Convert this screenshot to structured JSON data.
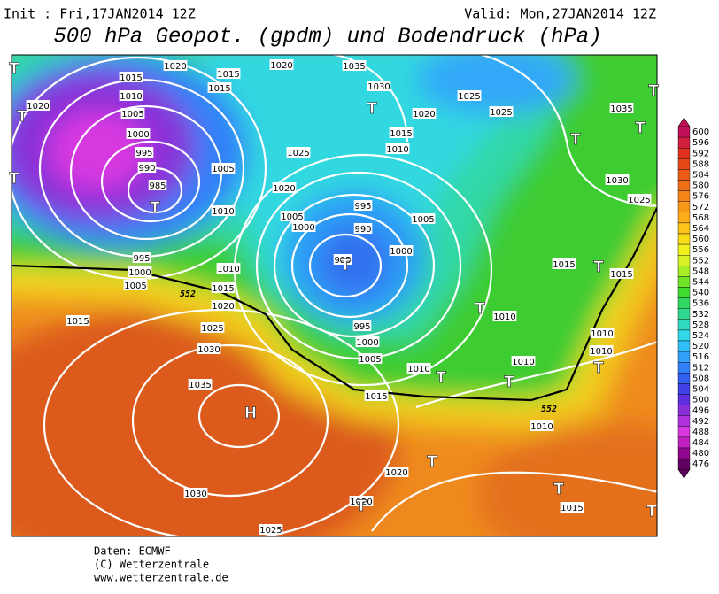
{
  "header": {
    "init": "Init : Fri,17JAN2014 12Z",
    "valid": "Valid: Mon,27JAN2014 12Z",
    "title": "500 hPa Geopot. (gpdm) und Bodendruck (hPa)"
  },
  "map": {
    "isobar_labels": [
      "1020",
      "1015",
      "1010",
      "1005",
      "1000",
      "995",
      "990",
      "985",
      "1020",
      "1015",
      "1015",
      "1020",
      "1035",
      "1030",
      "1025",
      "1025",
      "1020",
      "1015",
      "1010",
      "1025",
      "1020",
      "1005",
      "1000",
      "995",
      "990",
      "985",
      "1000",
      "1005",
      "1010",
      "1005",
      "995",
      "1000",
      "1005",
      "1010",
      "1015",
      "1020",
      "1025",
      "1030",
      "1015",
      "1035",
      "1030",
      "1025",
      "995",
      "1000",
      "1005",
      "1010",
      "1015",
      "1010",
      "1020",
      "1020",
      "1015",
      "1010",
      "1010",
      "1010",
      "1015",
      "1015",
      "1030",
      "1025",
      "1035",
      "1010"
    ],
    "pressure_centers": [
      "T",
      "T",
      "T",
      "T",
      "T",
      "T",
      "T",
      "T",
      "T",
      "T",
      "T",
      "T",
      "T",
      "T",
      "T",
      "T",
      "T",
      "T",
      "H"
    ],
    "contour_label": "552"
  },
  "colorbar": {
    "levels": [
      600,
      596,
      592,
      588,
      584,
      580,
      576,
      572,
      568,
      564,
      560,
      556,
      552,
      548,
      544,
      540,
      536,
      532,
      528,
      524,
      520,
      516,
      512,
      508,
      504,
      500,
      496,
      492,
      488,
      484,
      480,
      476
    ],
    "colors": [
      "#c0105a",
      "#d21e3c",
      "#e03020",
      "#e84818",
      "#ec5c18",
      "#f07018",
      "#f48418",
      "#f89818",
      "#fcac18",
      "#fcc418",
      "#f8dc18",
      "#f0f020",
      "#d8f028",
      "#a8ec28",
      "#70e428",
      "#40dc30",
      "#30d860",
      "#30d890",
      "#30dcc0",
      "#30d8e8",
      "#30c0f8",
      "#30a0f8",
      "#3080f8",
      "#3060f0",
      "#4040e8",
      "#6030e0",
      "#8830d8",
      "#b030e0",
      "#d838e0",
      "#c020c0",
      "#900890",
      "#600060"
    ]
  },
  "footer": {
    "source": "Daten: ECMWF",
    "copyright": "(C) Wetterzentrale",
    "url": "www.wetterzentrale.de"
  }
}
